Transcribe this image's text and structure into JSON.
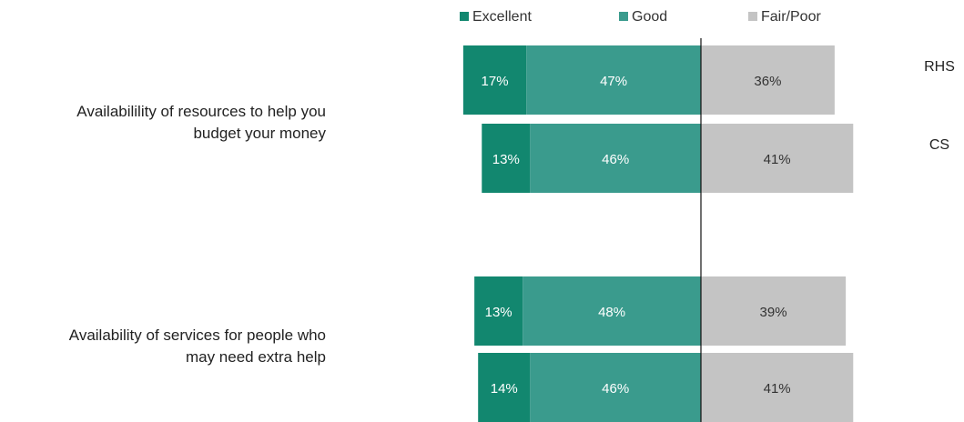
{
  "chart_data": {
    "type": "bar",
    "orientation": "horizontal",
    "stacked": "diverging",
    "legend": {
      "placement": "top",
      "items": [
        {
          "name": "Excellent",
          "color": "#12876f"
        },
        {
          "name": "Good",
          "color": "#3a9b8d"
        },
        {
          "name": "Fair/Poor",
          "color": "#c4c4c4"
        }
      ]
    },
    "series_order": [
      "Excellent",
      "Good",
      "Fair/Poor"
    ],
    "value_labels_color": {
      "Excellent": "#ffffff",
      "Good": "#ffffff",
      "Fair/Poor": "#333333"
    },
    "groups": [
      {
        "category_lines": [
          "Availabilility of resources to help you",
          "budget your money"
        ],
        "rows": [
          {
            "row_label": "RHS",
            "values": [
              17,
              47,
              36
            ],
            "labels": [
              "17%",
              "47%",
              "36%"
            ]
          },
          {
            "row_label": "CS",
            "values": [
              13,
              46,
              41
            ],
            "labels": [
              "13%",
              "46%",
              "41%"
            ]
          }
        ]
      },
      {
        "category_lines": [
          "Availability of services for people who",
          "may need extra help"
        ],
        "rows": [
          {
            "row_label": "",
            "values": [
              13,
              48,
              39
            ],
            "labels": [
              "13%",
              "48%",
              "39%"
            ]
          },
          {
            "row_label": "",
            "values": [
              14,
              46,
              41
            ],
            "labels": [
              "14%",
              "46%",
              "41%"
            ]
          }
        ]
      }
    ],
    "grid": false
  }
}
